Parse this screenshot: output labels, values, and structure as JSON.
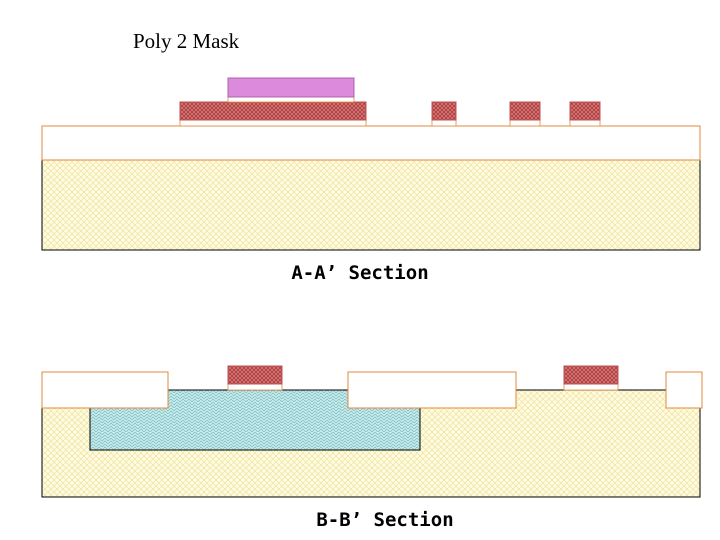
{
  "title": "Poly 2 Mask",
  "sections": [
    {
      "label": "A-A’ Section"
    },
    {
      "label": "B-B’ Section"
    }
  ]
}
